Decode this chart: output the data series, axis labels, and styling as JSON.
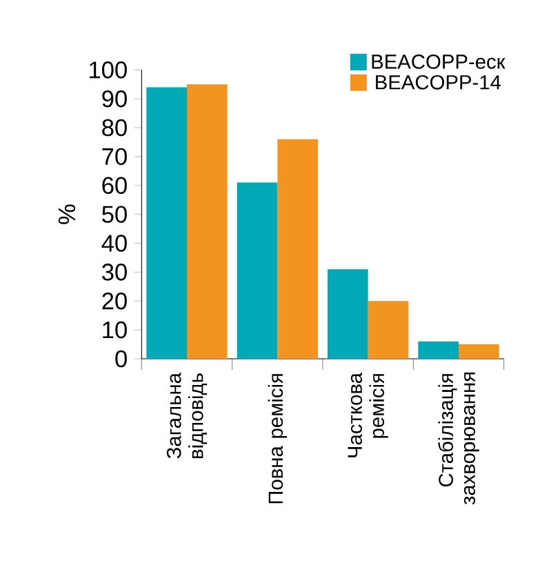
{
  "chart_data": {
    "type": "bar",
    "ylabel": "%",
    "categories": [
      "Загальна відповідь",
      "Повна ремісія",
      "Часткова ремісія",
      "Стабілізація захворювання"
    ],
    "series": [
      {
        "name": "BEACOPP-еск",
        "color": "#00a9b5",
        "values": [
          94,
          61,
          31,
          6
        ]
      },
      {
        "name": "BEACOPP-14",
        "color": "#f39320",
        "values": [
          95,
          76,
          20,
          5
        ]
      }
    ],
    "ylim": [
      0,
      100
    ],
    "yticks": [
      0,
      10,
      20,
      30,
      40,
      50,
      60,
      70,
      80,
      90,
      100
    ],
    "legend": "top right"
  }
}
